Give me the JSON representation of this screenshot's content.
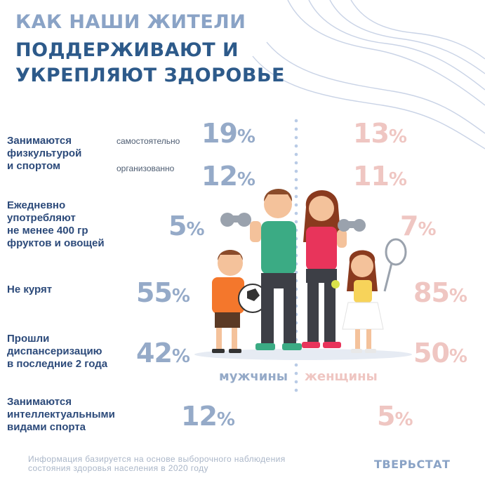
{
  "title": {
    "line1": "КАК НАШИ ЖИТЕЛИ",
    "line2": "ПОДДЕРЖИВАЮТ И",
    "line3": "УКРЕПЛЯЮТ ЗДОРОВЬЕ"
  },
  "rows": {
    "sport": {
      "label_line1": "Занимаются",
      "label_line2": "физкультурой",
      "label_line3": "и спортом",
      "self_label": "самостоятельно",
      "org_label": "организованно",
      "self_men": "19",
      "self_women": "13",
      "org_men": "12",
      "org_women": "11"
    },
    "fruits": {
      "label_line1": "Ежедневно",
      "label_line2": "употребляют",
      "label_line3": "не менее 400 гр",
      "label_line4": "фруктов и овощей",
      "men": "5",
      "women": "7"
    },
    "smoke": {
      "label_line1": "Не курят",
      "men": "55",
      "women": "85"
    },
    "checkup": {
      "label_line1": "Прошли",
      "label_line2": "диспансеризацию",
      "label_line3": "в последние 2 года",
      "men": "42",
      "women": "50"
    },
    "intellect": {
      "label_line1": "Занимаются",
      "label_line2": "интеллектуальными",
      "label_line3": "видами спорта",
      "men": "12",
      "women": "5"
    }
  },
  "percent_sign": "%",
  "legend": {
    "men": "мужчины",
    "women": "женщины",
    "men_color": "#95aac8",
    "women_color": "#efc6c2"
  },
  "footnote": {
    "line1": "Информация базируется на основе выборочного наблюдения",
    "line2": "состояния здоровья населения в 2020 году"
  },
  "brand": "ТВЕРЬСТАТ",
  "icons": {
    "illustration": "family-exercise-illustration",
    "decor": "wave-lines-decoration"
  }
}
